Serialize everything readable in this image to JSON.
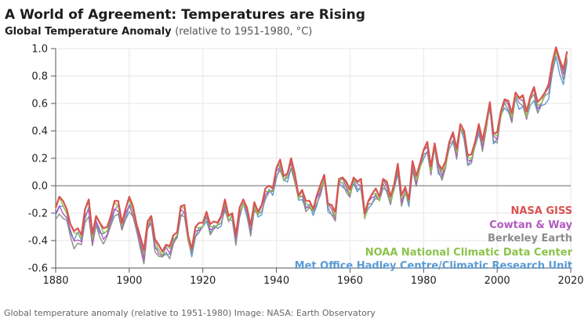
{
  "header": {
    "title": "A World of Agreement: Temperatures are Rising",
    "subtitle_main": "Global Temperature Anomaly",
    "subtitle_unit": "(relative to 1951-1980, °C)"
  },
  "caption": "Global temperature anomaly (relative to 1951-1980) Image: NASA: Earth Observatory",
  "colors": {
    "nasa": "#d9534f",
    "cowtan": "#b05bbf",
    "berkeley": "#8c8c8c",
    "noaa": "#8bc34a",
    "hadley": "#5b9bd5",
    "zero_line": "#888888",
    "grid": "#e6e6e6"
  },
  "chart_data": {
    "type": "line",
    "title": "A World of Agreement: Temperatures are Rising",
    "subtitle": "Global Temperature Anomaly (relative to 1951-1980, °C)",
    "xlabel": "",
    "ylabel": "",
    "xlim": [
      1880,
      2020
    ],
    "ylim": [
      -0.6,
      1.0
    ],
    "grid": true,
    "legend_position": "bottom-right",
    "x_ticks": [
      "1880",
      "1900",
      "1920",
      "1940",
      "1960",
      "1980",
      "2000",
      "2020"
    ],
    "y_ticks": [
      "1.0",
      "0.8",
      "0.6",
      "0.4",
      "0.2",
      "0.0",
      "-0.2",
      "-0.4",
      "-0.6"
    ],
    "x_start": 1880,
    "nasa_giss": [
      -0.16,
      -0.08,
      -0.11,
      -0.17,
      -0.28,
      -0.33,
      -0.31,
      -0.36,
      -0.17,
      -0.1,
      -0.35,
      -0.22,
      -0.27,
      -0.31,
      -0.3,
      -0.22,
      -0.11,
      -0.11,
      -0.27,
      -0.17,
      -0.08,
      -0.15,
      -0.28,
      -0.37,
      -0.47,
      -0.26,
      -0.22,
      -0.39,
      -0.43,
      -0.48,
      -0.43,
      -0.44,
      -0.36,
      -0.34,
      -0.15,
      -0.14,
      -0.36,
      -0.46,
      -0.3,
      -0.27,
      -0.27,
      -0.19,
      -0.28,
      -0.26,
      -0.27,
      -0.22,
      -0.1,
      -0.22,
      -0.2,
      -0.36,
      -0.16,
      -0.1,
      -0.16,
      -0.29,
      -0.12,
      -0.19,
      -0.14,
      -0.02,
      -0.0,
      -0.02,
      0.13,
      0.19,
      0.07,
      0.09,
      0.2,
      0.09,
      -0.07,
      -0.03,
      -0.11,
      -0.11,
      -0.17,
      -0.07,
      0.01,
      0.08,
      -0.13,
      -0.14,
      -0.19,
      0.05,
      0.06,
      0.03,
      -0.03,
      0.06,
      0.03,
      0.05,
      -0.2,
      -0.11,
      -0.06,
      -0.02,
      -0.08,
      0.05,
      0.03,
      -0.08,
      0.01,
      0.16,
      -0.07,
      -0.01,
      -0.1,
      0.18,
      0.07,
      0.16,
      0.26,
      0.32,
      0.14,
      0.31,
      0.16,
      0.12,
      0.18,
      0.32,
      0.39,
      0.27,
      0.45,
      0.4,
      0.22,
      0.23,
      0.32,
      0.45,
      0.33,
      0.46,
      0.61,
      0.38,
      0.39,
      0.54,
      0.63,
      0.62,
      0.53,
      0.68,
      0.64,
      0.66,
      0.54,
      0.65,
      0.72,
      0.61,
      0.64,
      0.68,
      0.74,
      0.9,
      1.01,
      0.92,
      0.85,
      0.98
    ],
    "series": [
      {
        "name": "NASA GISS",
        "key": "nasa",
        "offset": 0.0,
        "amp": 0.0,
        "phase": 0.0
      },
      {
        "name": "Cowtan & Way",
        "key": "cowtan",
        "offset": -0.03,
        "amp": 0.025,
        "phase": 1.3
      },
      {
        "name": "Berkeley Earth",
        "key": "berkeley",
        "offset": -0.05,
        "amp": 0.03,
        "phase": 2.1
      },
      {
        "name": "NOAA National Climatic Data Center",
        "key": "noaa",
        "offset": -0.02,
        "amp": 0.02,
        "phase": 0.6
      },
      {
        "name": "Met Office Hadley Centre/Climatic Research Unit",
        "key": "hadley",
        "offset": -0.05,
        "amp": 0.025,
        "phase": 3.4
      }
    ]
  }
}
